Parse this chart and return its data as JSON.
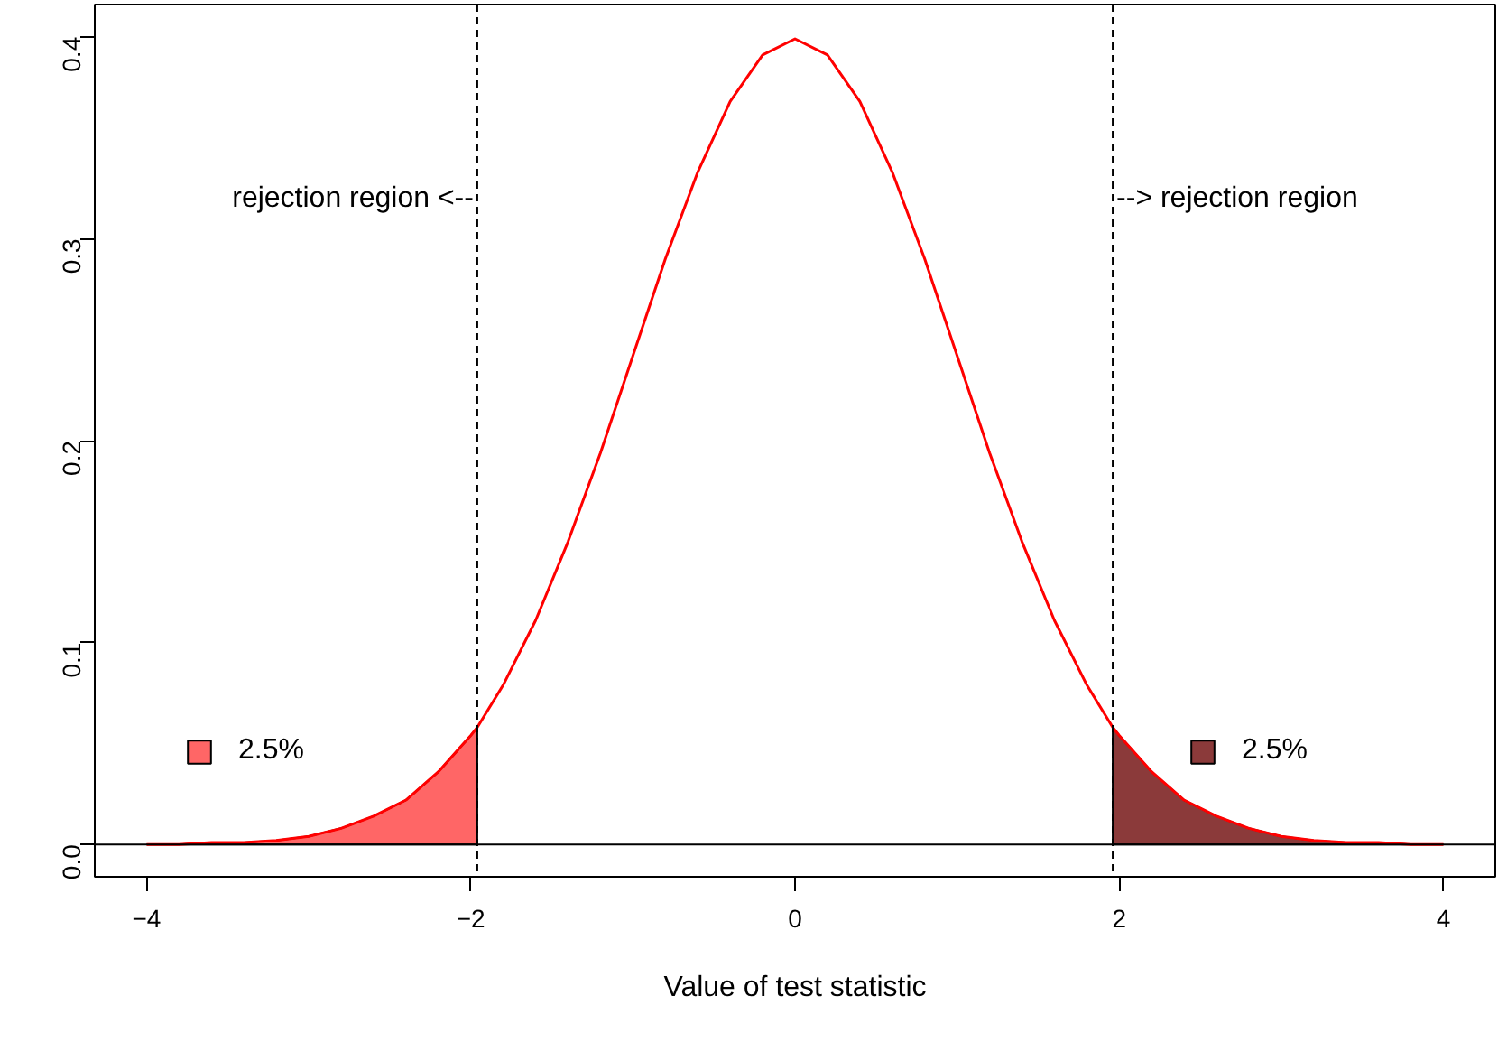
{
  "chart_data": {
    "type": "line",
    "xlabel": "Value of test statistic",
    "xlim": [
      -4.32,
      4.32
    ],
    "ylim": [
      -0.016,
      0.416
    ],
    "xticks": [
      {
        "value": -4,
        "label": "−4"
      },
      {
        "value": -2,
        "label": "−2"
      },
      0,
      2,
      4
    ],
    "yticks": [
      {
        "value": 0,
        "label": "0.0"
      },
      0.1,
      0.2,
      0.3,
      0.4
    ],
    "grid": false,
    "legend": "bottom",
    "series": [
      {
        "type": "area",
        "name": "2.5%",
        "color": "#ff6666",
        "x": [
          -4.0,
          -3.8,
          -3.6,
          -3.4,
          -3.2,
          -3.0,
          -2.8,
          -2.6,
          -2.4,
          -2.2,
          -2.0,
          -1.96
        ],
        "values": [
          0.0,
          0.0,
          0.001,
          0.001,
          0.002,
          0.004,
          0.008,
          0.014,
          0.022,
          0.036,
          0.054,
          0.058
        ]
      },
      {
        "type": "area",
        "name": "2.5%",
        "color": "#8b3a3a",
        "x": [
          1.96,
          2.0,
          2.2,
          2.4,
          2.6,
          2.8,
          3.0,
          3.2,
          3.4,
          3.6,
          3.8,
          4.0
        ],
        "values": [
          0.058,
          0.054,
          0.036,
          0.022,
          0.014,
          0.008,
          0.004,
          0.002,
          0.001,
          0.001,
          0.0,
          0.0
        ]
      },
      {
        "color": "#ff0000",
        "x": [
          -4.0,
          -3.8,
          -3.6,
          -3.4,
          -3.2,
          -3.0,
          -2.8,
          -2.6,
          -2.4,
          -2.2,
          -2.0,
          -1.96,
          -1.8,
          -1.6,
          -1.4,
          -1.2,
          -1.0,
          -0.8,
          -0.6,
          -0.4,
          -0.2,
          0.0,
          0.2,
          0.4,
          0.6,
          0.8,
          1.0,
          1.2,
          1.4,
          1.6,
          1.8,
          1.96,
          2.0,
          2.2,
          2.4,
          2.6,
          2.8,
          3.0,
          3.2,
          3.4,
          3.6,
          3.8,
          4.0
        ],
        "values": [
          0.0,
          0.0,
          0.001,
          0.001,
          0.002,
          0.004,
          0.008,
          0.014,
          0.022,
          0.036,
          0.054,
          0.058,
          0.079,
          0.111,
          0.15,
          0.194,
          0.242,
          0.29,
          0.333,
          0.368,
          0.391,
          0.399,
          0.391,
          0.368,
          0.333,
          0.29,
          0.242,
          0.194,
          0.15,
          0.111,
          0.079,
          0.058,
          0.054,
          0.036,
          0.022,
          0.014,
          0.008,
          0.004,
          0.002,
          0.001,
          0.001,
          0.0,
          0.0
        ]
      }
    ],
    "ref_lines": [
      {
        "axis": "x",
        "value": -1.96,
        "color": "#000000",
        "line_style": "dashed"
      },
      {
        "axis": "x",
        "value": 1.96,
        "color": "#000000",
        "line_style": "dashed"
      },
      {
        "axis": "y",
        "value": 0,
        "color": "#000000",
        "line_style": "solid"
      }
    ],
    "annotations": [
      {
        "text": "rejection region <--",
        "x": -1.96,
        "y": 0.32
      },
      {
        "text": "--> rejection region",
        "x": 1.96,
        "y": 0.32
      }
    ]
  }
}
